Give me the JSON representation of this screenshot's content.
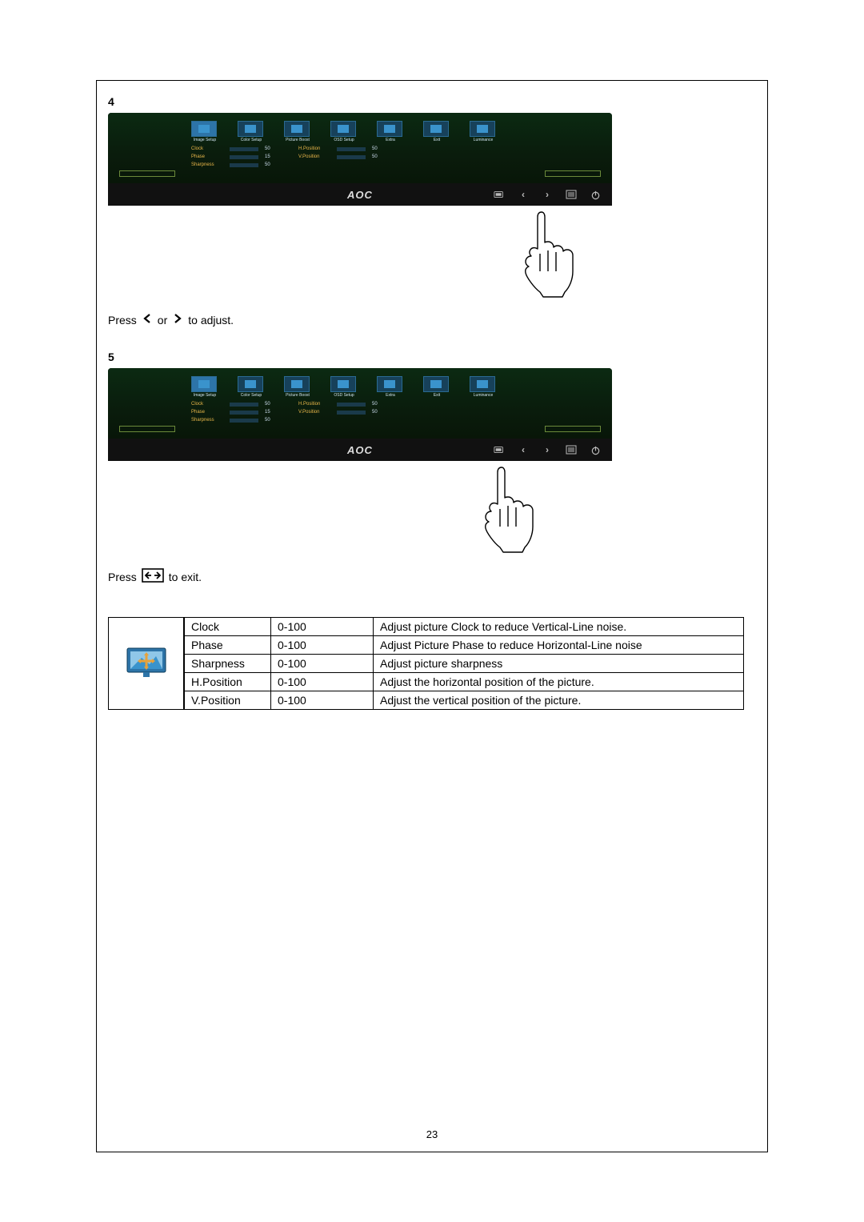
{
  "page_number": "23",
  "steps": [
    {
      "num": "4",
      "caption_pre": "Press ",
      "caption_mid": " or ",
      "caption_post": " to adjust."
    },
    {
      "num": "5",
      "caption_pre": "Press  ",
      "caption_post": "  to exit."
    }
  ],
  "monitor": {
    "logo": "AOC",
    "osd_tabs": [
      {
        "label": "Image Setup",
        "active": true
      },
      {
        "label": "Color Setup"
      },
      {
        "label": "Picture Boost"
      },
      {
        "label": "OSD Setup"
      },
      {
        "label": "Extra"
      },
      {
        "label": "Exit"
      },
      {
        "label": "Luminance"
      }
    ],
    "osd_left": [
      {
        "label": "Clock",
        "val": "50",
        "fill": 50
      },
      {
        "label": "Phase",
        "val": "15",
        "fill": 15
      },
      {
        "label": "Sharpness",
        "val": "50",
        "fill": 50
      }
    ],
    "osd_right": [
      {
        "label": "H.Position",
        "val": "50",
        "fill": 50
      },
      {
        "label": "V.Position",
        "val": "50",
        "fill": 50
      }
    ],
    "bezel_buttons": [
      "auto",
      "left",
      "right",
      "menu",
      "power"
    ]
  },
  "table": {
    "rows": [
      {
        "name": "Clock",
        "range": "0-100",
        "desc": "Adjust picture Clock to reduce Vertical-Line noise."
      },
      {
        "name": "Phase",
        "range": "0-100",
        "desc": "Adjust Picture Phase to reduce Horizontal-Line noise"
      },
      {
        "name": "Sharpness",
        "range": "0-100",
        "desc": "Adjust picture sharpness"
      },
      {
        "name": "H.Position",
        "range": "0-100",
        "desc": "Adjust the horizontal position of the picture."
      },
      {
        "name": "V.Position",
        "range": "0-100",
        "desc": "Adjust the vertical position of the picture."
      }
    ]
  },
  "colors": {
    "accent": "#3a93cc",
    "tab_bg": "#17415a",
    "osd_label": "#e8b649"
  }
}
